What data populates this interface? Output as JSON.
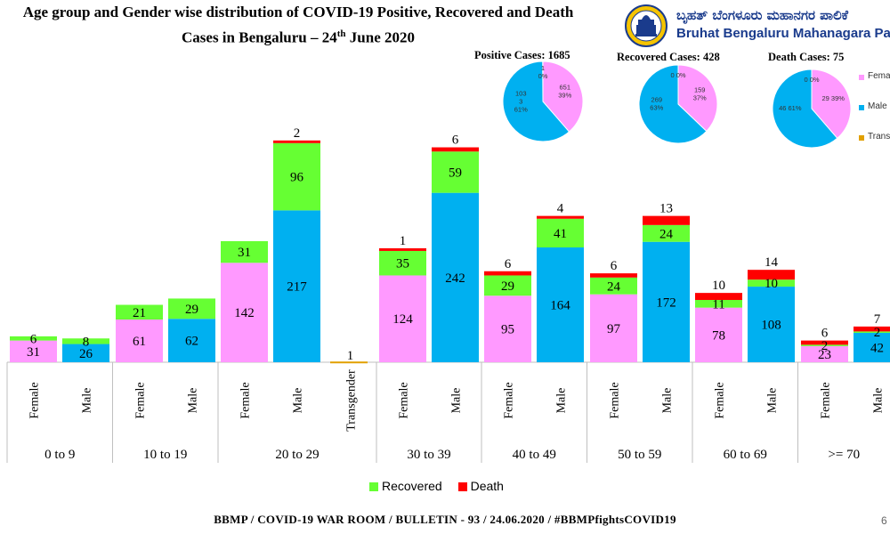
{
  "title": {
    "line1": "Age group and Gender wise distribution of COVID-19 Positive, Recovered and Death",
    "line2_before": "Cases in Bengaluru – 24",
    "line2_sup": "th",
    "line2_after": " June 2020"
  },
  "logo": {
    "kannada": "ಬೃಹತ್ ಬೆಂಗಳೂರು ಮಹಾನಗರ ಪಾಲಿಕೆ",
    "english": "Bruhat Bengaluru Mahanagara Palike"
  },
  "colors": {
    "female": "#ff99ff",
    "male": "#00b0f0",
    "recovered": "#66ff33",
    "death": "#ff0000",
    "transgender": "#e1a000"
  },
  "chart_data": [
    {
      "type": "bar",
      "stacked": true,
      "bars": [
        {
          "group": "0 to 9",
          "label": "Female",
          "base": 31,
          "recovered": 6,
          "death": 0
        },
        {
          "group": "0 to 9",
          "label": "Male",
          "base": 26,
          "recovered": 8,
          "death": 0
        },
        {
          "group": "10 to 19",
          "label": "Female",
          "base": 61,
          "recovered": 21,
          "death": 0
        },
        {
          "group": "10 to 19",
          "label": "Male",
          "base": 62,
          "recovered": 29,
          "death": 0
        },
        {
          "group": "20 to 29",
          "label": "Female",
          "base": 142,
          "recovered": 31,
          "death": 0
        },
        {
          "group": "20 to 29",
          "label": "Male",
          "base": 217,
          "recovered": 96,
          "death": 2
        },
        {
          "group": "20 to 29",
          "label": "Transgender",
          "base": 1,
          "recovered": 0,
          "death": 0
        },
        {
          "group": "30 to 39",
          "label": "Female",
          "base": 124,
          "recovered": 35,
          "death": 1
        },
        {
          "group": "30 to 39",
          "label": "Male",
          "base": 242,
          "recovered": 59,
          "death": 6
        },
        {
          "group": "40 to 49",
          "label": "Female",
          "base": 95,
          "recovered": 29,
          "death": 6
        },
        {
          "group": "40 to 49",
          "label": "Male",
          "base": 164,
          "recovered": 41,
          "death": 4
        },
        {
          "group": "50 to 59",
          "label": "Female",
          "base": 97,
          "recovered": 24,
          "death": 6
        },
        {
          "group": "50 to 59",
          "label": "Male",
          "base": 172,
          "recovered": 24,
          "death": 13
        },
        {
          "group": "60 to 69",
          "label": "Female",
          "base": 78,
          "recovered": 11,
          "death": 10
        },
        {
          "group": "60 to 69",
          "label": "Male",
          "base": 108,
          "recovered": 10,
          "death": 14
        },
        {
          "group": ">= 70",
          "label": "Female",
          "base": 23,
          "recovered": 2,
          "death": 6
        },
        {
          "group": ">= 70",
          "label": "Male",
          "base": 42,
          "recovered": 2,
          "death": 7
        }
      ],
      "groups": [
        "0 to 9",
        "10 to 19",
        "20 to 29",
        "30 to 39",
        "40 to 49",
        "50 to 59",
        "60 to 69",
        ">= 70"
      ],
      "legend": [
        "Recovered",
        "Death"
      ]
    },
    {
      "type": "pie",
      "title": "Positive Cases:  1685",
      "slices": [
        {
          "name": "Female",
          "value": 651,
          "label": "651\n39%"
        },
        {
          "name": "Male",
          "value": 1033,
          "label": "103\n3\n61%"
        },
        {
          "name": "Transgender",
          "value": 1,
          "label": "1\n0%"
        }
      ]
    },
    {
      "type": "pie",
      "title": "Recovered Cases: 428",
      "slices": [
        {
          "name": "Female",
          "value": 159,
          "label": "159\n37%"
        },
        {
          "name": "Male",
          "value": 269,
          "label": "269\n63%"
        },
        {
          "name": "Transgender",
          "value": 0,
          "label": "0 0%"
        }
      ]
    },
    {
      "type": "pie",
      "title": "Death Cases: 75",
      "slices": [
        {
          "name": "Female",
          "value": 29,
          "label": "29 39%"
        },
        {
          "name": "Male",
          "value": 46,
          "label": "46 61%"
        },
        {
          "name": "Transgender",
          "value": 0,
          "label": "0 0%"
        }
      ]
    }
  ],
  "pie_legend": [
    {
      "name": "Female",
      "label": "Female"
    },
    {
      "name": "Male",
      "label": "Male"
    },
    {
      "name": "Transgender",
      "label": "Transgender"
    }
  ],
  "footer": "BBMP / COVID-19 WAR ROOM / BULLETIN - 93 / 24.06.2020 / #BBMPfightsCOVID19",
  "page_number": "6"
}
